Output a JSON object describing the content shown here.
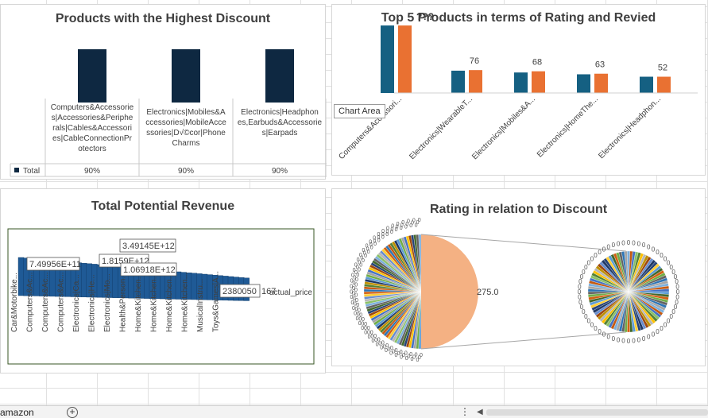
{
  "app": {
    "sheet_tab": "amazon",
    "add_sheet_symbol": "+",
    "more_symbol": "⋮",
    "scroll_left_symbol": "◀"
  },
  "panel1": {
    "title": "Products  with  the Highest Discount",
    "bar_color": "#0e2841",
    "chart_data": {
      "type": "bar",
      "categories": [
        [
          "Computers&Accessorie",
          "s|Accessories&Periphe",
          "rals|Cables&Accessori",
          "es|CableConnectionPr",
          "otectors"
        ],
        [
          "Electronics|Mobiles&A",
          "ccessories|MobileAcce",
          "ssories|D√©cor|Phone",
          "Charms"
        ],
        [
          "Electronics|Headphon",
          "es,Earbuds&Accessorie",
          "s|Earpads"
        ]
      ],
      "series": [
        {
          "name": "Total",
          "values": [
            90,
            90,
            90
          ]
        }
      ],
      "value_labels": [
        "90%",
        "90%",
        "90%"
      ],
      "ylim": [
        0,
        100
      ]
    }
  },
  "panel2": {
    "title": "Top 5 Products in terms of Rating and Revied",
    "overlap_label": "???",
    "tooltip": "Chart Area",
    "colors": [
      "#156082",
      "#e97132"
    ],
    "chart_data": {
      "type": "bar",
      "categories": [
        "Computers&Accessori...",
        "Electronics|WearableT...",
        "Electronics|Mobiles&A...",
        "Electronics|HomeThe...",
        "Electronics|Headphon..."
      ],
      "series": [
        {
          "values": [
            112,
            37,
            34,
            31,
            27
          ]
        },
        {
          "values": [
            112,
            38,
            36,
            32,
            27
          ]
        }
      ],
      "value_labels": [
        "",
        "76",
        "68",
        "63",
        "52"
      ],
      "ylim": [
        0,
        120
      ]
    }
  },
  "panel3": {
    "title": "Total Potential Revenue",
    "bar_color": "#1f5a96",
    "border_color": "#375623",
    "chart_data": {
      "type": "bar",
      "categories": [
        "Car&Motorbike...",
        "Computers&Ac...",
        "Computers&Ac...",
        "Computers&Ac...",
        "Electronics|Ca...",
        "Electronics|He...",
        "Electronics|Mo...",
        "Health&Person...",
        "Home&Kitchen...",
        "Home&Kitchen...",
        "Home&Kitchen...",
        "Home&Kitchen...",
        "MusicalInstru...",
        "Toys&Games|A..."
      ],
      "labels": [
        "3.49145E+12",
        "7.49956E+11",
        "1.8159E+12",
        "1.06918E+12",
        "2380050"
      ],
      "legend": "actual_price",
      "overlap_tail": "167"
    }
  },
  "panel4": {
    "title": "Rating in relation to Discount",
    "slice_label": "275.0",
    "slice_color": "#f4b183",
    "chart_data": {
      "type": "pie",
      "values": [
        275.0
      ],
      "labels": [
        "275.0"
      ]
    }
  }
}
